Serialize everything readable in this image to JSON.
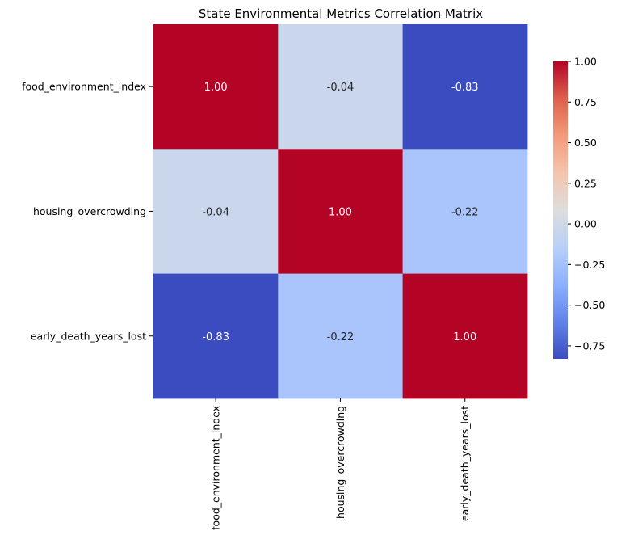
{
  "chart_data": {
    "type": "heatmap",
    "title": "State Environmental Metrics Correlation Matrix",
    "x_labels": [
      "food_environment_index",
      "housing_overcrowding",
      "early_death_years_lost"
    ],
    "y_labels": [
      "food_environment_index",
      "housing_overcrowding",
      "early_death_years_lost"
    ],
    "values": [
      [
        1.0,
        -0.04,
        -0.83
      ],
      [
        -0.04,
        1.0,
        -0.22
      ],
      [
        -0.83,
        -0.22,
        1.0
      ]
    ],
    "annotations": [
      [
        "1.00",
        "-0.04",
        "-0.83"
      ],
      [
        "-0.04",
        "1.00",
        "-0.22"
      ],
      [
        "-0.83",
        "-0.22",
        "1.00"
      ]
    ],
    "colormap": "coolwarm",
    "vmin": -0.83,
    "vmax": 1.0,
    "colorbar": {
      "ticks": [
        1.0,
        0.75,
        0.5,
        0.25,
        0.0,
        -0.25,
        -0.5,
        -0.75
      ],
      "tick_labels": [
        "1.00",
        "0.75",
        "0.50",
        "0.25",
        "0.00",
        "−0.25",
        "−0.50",
        "−0.75"
      ]
    }
  }
}
